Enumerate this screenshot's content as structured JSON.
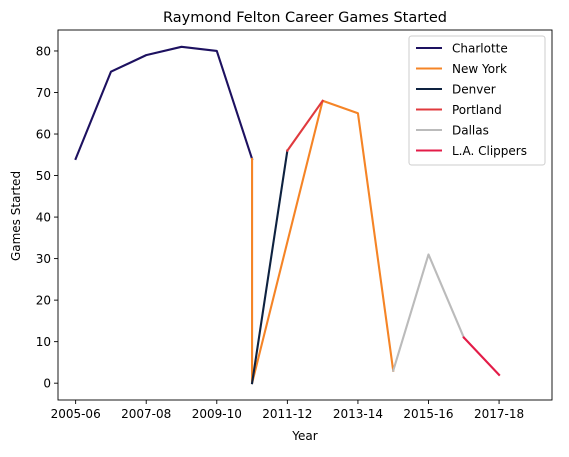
{
  "chart_data": {
    "type": "line",
    "title": "Raymond Felton Career Games Started",
    "xlabel": "Year",
    "ylabel": "Games Started",
    "xlim": [
      2004.5,
      2018.5
    ],
    "ylim": [
      -4.05,
      85.05
    ],
    "grid": false,
    "legend_position": "top-right",
    "x_ticks": [
      {
        "value": 2005,
        "label": "2005-06"
      },
      {
        "value": 2007,
        "label": "2007-08"
      },
      {
        "value": 2009,
        "label": "2009-10"
      },
      {
        "value": 2011,
        "label": "2011-12"
      },
      {
        "value": 2013,
        "label": "2013-14"
      },
      {
        "value": 2015,
        "label": "2015-16"
      },
      {
        "value": 2017,
        "label": "2017-18"
      }
    ],
    "y_ticks": [
      0,
      10,
      20,
      30,
      40,
      50,
      60,
      70,
      80
    ],
    "series": [
      {
        "name": "Charlotte",
        "color": "#1d1160",
        "points": [
          [
            2005,
            54
          ],
          [
            2006,
            75
          ],
          [
            2007,
            79
          ],
          [
            2008,
            81
          ],
          [
            2009,
            80
          ],
          [
            2010,
            54
          ]
        ]
      },
      {
        "name": "New York",
        "color": "#f58426",
        "points": [
          [
            2010,
            54
          ],
          [
            2010,
            0
          ],
          [
            2012,
            68
          ],
          [
            2013,
            65
          ],
          [
            2014,
            3
          ]
        ]
      },
      {
        "name": "Denver",
        "color": "#0e2240",
        "points": [
          [
            2010,
            0
          ],
          [
            2011,
            56
          ]
        ]
      },
      {
        "name": "Portland",
        "color": "#e03a3e",
        "points": [
          [
            2011,
            56
          ],
          [
            2012,
            68
          ]
        ]
      },
      {
        "name": "Dallas",
        "color": "#bbbbbb",
        "points": [
          [
            2014,
            3
          ],
          [
            2015,
            31
          ],
          [
            2016,
            11
          ]
        ]
      },
      {
        "name": "L.A. Clippers",
        "color": "#e31c48",
        "points": [
          [
            2016,
            11
          ],
          [
            2017,
            2
          ]
        ]
      }
    ]
  }
}
